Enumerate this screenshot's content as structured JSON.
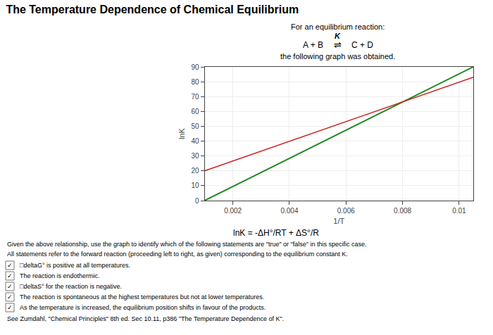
{
  "chart_data": {
    "type": "line",
    "title": "The Temperature Dependence of Chemical Equilibrium",
    "x": [
      0.001,
      0.0105
    ],
    "series": [
      {
        "color": "#228822",
        "values": [
          0,
          90
        ]
      },
      {
        "color": "#cc2222",
        "values": [
          20,
          83
        ]
      }
    ],
    "xlim": [
      0.001,
      0.0105
    ],
    "ylim": [
      0,
      90
    ],
    "xticks": [
      0.002,
      0.004,
      0.006,
      0.008,
      0.01
    ],
    "yticks": [
      0,
      10,
      20,
      30,
      40,
      50,
      60,
      70,
      80,
      90
    ],
    "xlabel": "1/T",
    "ylabel": "lnK",
    "grid": true,
    "annotations": [
      "For an equilibrium reaction:",
      "K",
      "A + B",
      "⇌",
      "C + D",
      "the following graph was obtained.",
      "lnK = -ΔH°/RT + ΔS°/R",
      "Given the above relationship, use the graph to identify which of the following statements are \"true\" or \"false\" in this specific case.",
      "All statements refer to the forward reaction (proceeding left to right, as given) corresponding to the equilibrium constant K.",
      "See Zumdahl, \"Chemical Principles\" 8th ed. Sec 10.11, p386 \"The Temperature Dependence of K\"."
    ],
    "check_mark": "✓",
    "checkboxes": [
      "□deltaG° is positive at all temperatures.",
      "The reaction is endothermic.",
      "□deltaS° for the reaction is negative.",
      "The reaction is spontaneous at the highest temperatures but not at lower temperatures.",
      "As the temperature is increased, the equilibrium position shifts in favour of the products."
    ]
  }
}
